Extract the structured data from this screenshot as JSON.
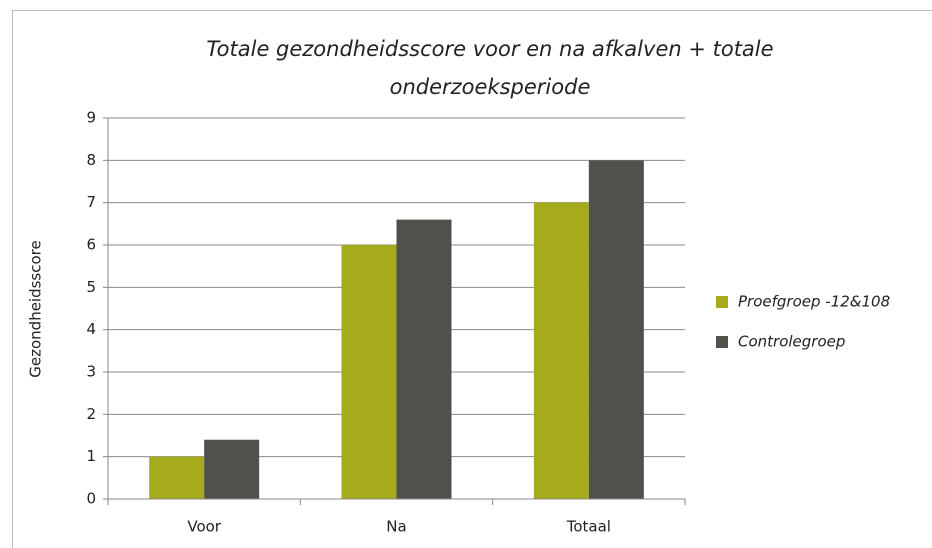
{
  "chart_data": {
    "type": "bar",
    "title": "Totale gezondheidsscore voor en na afkalven + totale onderzoeksperiode",
    "y_label": "Gezondheidsscore",
    "categories": [
      "Voor",
      "Na",
      "Totaal"
    ],
    "series": [
      {
        "name": "Proefgroep -12&108",
        "color": "#a5ab1a",
        "values": [
          1,
          6,
          7
        ]
      },
      {
        "name": "Controlegroep",
        "color": "#4e524b",
        "values": [
          1.4,
          6.6,
          8
        ]
      }
    ],
    "ylim": [
      0,
      9
    ],
    "yticks": [
      0,
      1,
      2,
      3,
      4,
      5,
      6,
      7,
      8,
      9
    ],
    "grid": true,
    "legend": "right"
  }
}
